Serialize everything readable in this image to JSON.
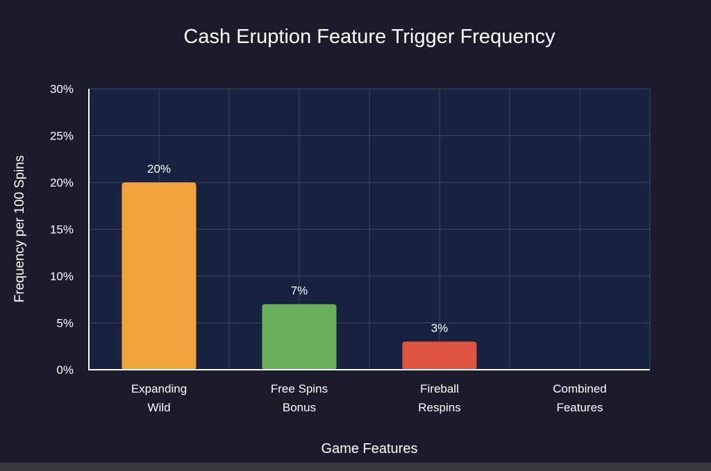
{
  "chart_data": {
    "type": "bar",
    "title": "Cash Eruption Feature Trigger Frequency",
    "xlabel": "Game Features",
    "ylabel": "Frequency per 100 Spins",
    "categories": [
      [
        "Expanding",
        "Wild"
      ],
      [
        "Free Spins",
        "Bonus"
      ],
      [
        "Fireball",
        "Respins"
      ],
      [
        "Combined",
        "Features"
      ]
    ],
    "values": [
      20,
      7,
      3,
      0
    ],
    "data_labels": [
      "20%",
      "7%",
      "3%",
      ""
    ],
    "colors": [
      "#f0a23b",
      "#6ab05c",
      "#e05442",
      "#888888"
    ],
    "ylim": [
      0,
      30
    ],
    "yticks": [
      0,
      5,
      10,
      15,
      20,
      25,
      30
    ],
    "ytick_labels": [
      "0%",
      "5%",
      "10%",
      "15%",
      "20%",
      "25%",
      "30%"
    ],
    "grid": true,
    "plot_background": "#172240",
    "page_background": "#1a1c2c",
    "grid_color": "#3a4566",
    "text_color": "#ffffff"
  }
}
